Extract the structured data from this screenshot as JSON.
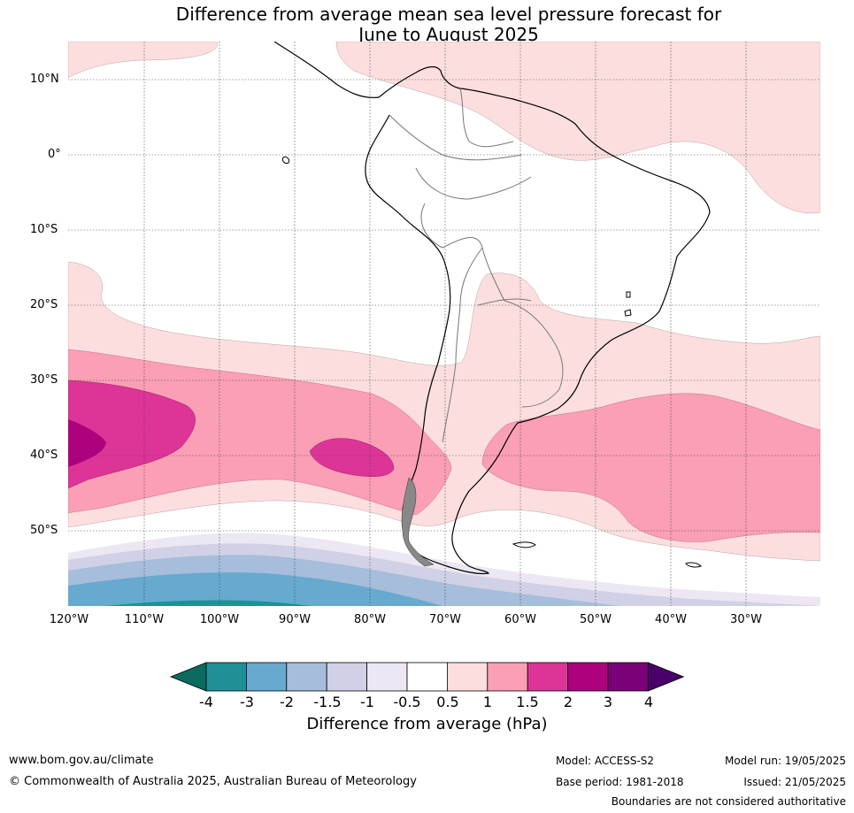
{
  "title": {
    "line1": "Difference from average mean sea level pressure forecast for",
    "line2": "June to August 2025"
  },
  "axes": {
    "lat_labels": [
      {
        "label": "10°N",
        "lat": 10
      },
      {
        "label": "0°",
        "lat": 0
      },
      {
        "label": "10°S",
        "lat": -10
      },
      {
        "label": "20°S",
        "lat": -20
      },
      {
        "label": "30°S",
        "lat": -30
      },
      {
        "label": "40°S",
        "lat": -40
      },
      {
        "label": "50°S",
        "lat": -50
      }
    ],
    "lon_labels": [
      {
        "label": "120°W",
        "lon": -120
      },
      {
        "label": "110°W",
        "lon": -110
      },
      {
        "label": "100°W",
        "lon": -100
      },
      {
        "label": "90°W",
        "lon": -90
      },
      {
        "label": "80°W",
        "lon": -80
      },
      {
        "label": "70°W",
        "lon": -70
      },
      {
        "label": "60°W",
        "lon": -60
      },
      {
        "label": "50°W",
        "lon": -50
      },
      {
        "label": "40°W",
        "lon": -40
      },
      {
        "label": "30°W",
        "lon": -30
      }
    ],
    "lon_range": [
      -120,
      -20
    ],
    "lat_range": [
      -60,
      15
    ]
  },
  "colorbar": {
    "label": "Difference from average (hPa)",
    "ticks": [
      "-4",
      "-3",
      "-2",
      "-1.5",
      "-1",
      "-0.5",
      "0.5",
      "1",
      "1.5",
      "2",
      "3",
      "4"
    ],
    "colors": {
      "under": "#0b6b5f",
      "bins": [
        "#1e9096",
        "#67a9cf",
        "#a6bddb",
        "#d0d1e6",
        "#ece7f2",
        "#ffffff",
        "#fddede",
        "#fa9fb5",
        "#dd3497",
        "#ae017e",
        "#7a0177"
      ],
      "over": "#49006a"
    }
  },
  "footer": {
    "url": "www.bom.gov.au/climate",
    "copyright": "© Commonwealth of Australia 2025, Australian Bureau of Meteorology",
    "model": "Model: ACCESS-S2",
    "base_period": "Base period: 1981-2018",
    "model_run": "Model run: 19/05/2025",
    "issued": "Issued: 21/05/2025",
    "disclaimer": "Boundaries are not considered authoritative"
  }
}
